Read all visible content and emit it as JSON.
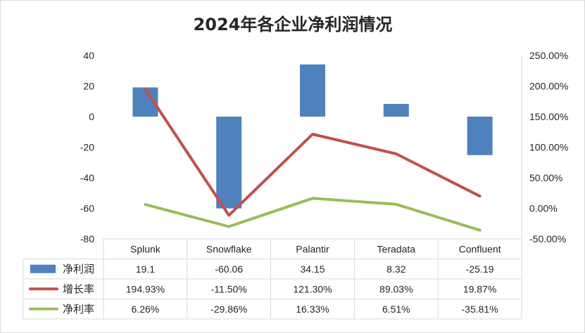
{
  "chart_data": {
    "type": "bar",
    "title": "2024年各企业净利润情况",
    "categories": [
      "Splunk",
      "Snowflake",
      "Palantir",
      "Teradata",
      "Confluent"
    ],
    "series": [
      {
        "name": "净利润",
        "type": "bar",
        "axis": "left",
        "color": "#4f81bd",
        "values": [
          19.1,
          -60.06,
          34.15,
          8.32,
          -25.19
        ],
        "labels": [
          "19.1",
          "-60.06",
          "34.15",
          "8.32",
          "-25.19"
        ]
      },
      {
        "name": "增长率",
        "type": "line",
        "axis": "right",
        "color": "#c0504d",
        "values": [
          194.93,
          -11.5,
          121.3,
          89.03,
          19.87
        ],
        "labels": [
          "194.93%",
          "-11.50%",
          "121.30%",
          "89.03%",
          "19.87%"
        ]
      },
      {
        "name": "净利率",
        "type": "line",
        "axis": "right",
        "color": "#9bbb59",
        "values": [
          6.26,
          -29.86,
          16.33,
          6.51,
          -35.81
        ],
        "labels": [
          "6.26%",
          "-29.86%",
          "16.33%",
          "6.51%",
          "-35.81%"
        ]
      }
    ],
    "left_axis": {
      "ylim": [
        -80,
        40
      ],
      "ticks": [
        "40",
        "20",
        "0",
        "-20",
        "-40",
        "-60",
        "-80"
      ],
      "tick_values": [
        40,
        20,
        0,
        -20,
        -40,
        -60,
        -80
      ]
    },
    "right_axis": {
      "ylim": [
        -50,
        250
      ],
      "ticks": [
        "250.00%",
        "200.00%",
        "150.00%",
        "100.00%",
        "50.00%",
        "0.00%",
        "-50.00%"
      ],
      "tick_values": [
        250,
        200,
        150,
        100,
        50,
        0,
        -50
      ]
    },
    "data_table": true,
    "grid": false
  }
}
